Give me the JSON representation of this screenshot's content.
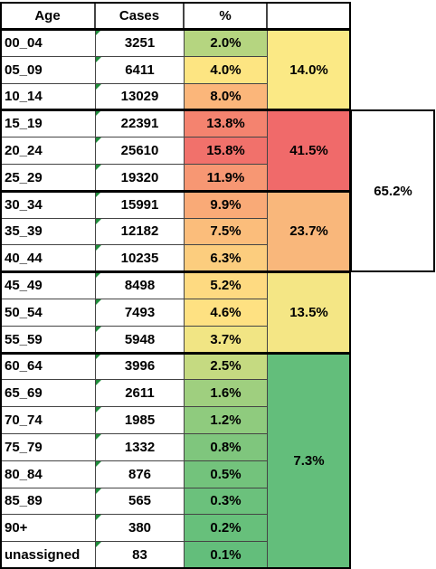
{
  "table": {
    "header": [
      "Age",
      "Cases",
      "%"
    ],
    "sections": [
      {
        "groups": [
          {
            "label": "14.0%",
            "color": "#fbe985",
            "rows": [
              {
                "cells": [
                  "00_04",
                  "3251",
                  "2.0%"
                ],
                "color": "#b5d580"
              },
              {
                "cells": [
                  "05_09",
                  "6411",
                  "4.0%"
                ],
                "color": "#fde582"
              },
              {
                "cells": [
                  "10_14",
                  "13029",
                  "8.0%"
                ],
                "color": "#fbb67a"
              }
            ]
          }
        ]
      },
      {
        "label": "65.2%",
        "groups": [
          {
            "label": "41.5%",
            "color": "#f06a6a",
            "rows": [
              {
                "cells": [
                  "15_19",
                  "22391",
                  "13.8%"
                ],
                "color": "#f4836f"
              },
              {
                "cells": [
                  "20_24",
                  "25610",
                  "15.8%"
                ],
                "color": "#f1716b"
              },
              {
                "cells": [
                  "25_29",
                  "19320",
                  "11.9%"
                ],
                "color": "#f79773"
              }
            ]
          },
          {
            "label": "23.7%",
            "color": "#f9b77b",
            "rows": [
              {
                "cells": [
                  "30_34",
                  "15991",
                  "9.9%"
                ],
                "color": "#f9aa77"
              },
              {
                "cells": [
                  "35_39",
                  "12182",
                  "7.5%"
                ],
                "color": "#fbbd7b"
              },
              {
                "cells": [
                  "40_44",
                  "10235",
                  "6.3%"
                ],
                "color": "#fccd7e"
              }
            ]
          }
        ]
      },
      {
        "groups": [
          {
            "label": "13.5%",
            "color": "#f4e685",
            "rows": [
              {
                "cells": [
                  "45_49",
                  "8498",
                  "5.2%"
                ],
                "color": "#feda81"
              },
              {
                "cells": [
                  "50_54",
                  "7493",
                  "4.6%"
                ],
                "color": "#fee182"
              },
              {
                "cells": [
                  "55_59",
                  "5948",
                  "3.7%"
                ],
                "color": "#f1e584"
              }
            ]
          }
        ]
      },
      {
        "groups": [
          {
            "label": "7.3%",
            "color": "#63be7b",
            "rows": [
              {
                "cells": [
                  "60_64",
                  "3996",
                  "2.5%"
                ],
                "color": "#c5da81"
              },
              {
                "cells": [
                  "65_69",
                  "2611",
                  "1.6%"
                ],
                "color": "#9fcf7f"
              },
              {
                "cells": [
                  "70_74",
                  "1985",
                  "1.2%"
                ],
                "color": "#8fcb7e"
              },
              {
                "cells": [
                  "75_79",
                  "1332",
                  "0.8%"
                ],
                "color": "#7fc67d"
              },
              {
                "cells": [
                  "80_84",
                  "876",
                  "0.5%"
                ],
                "color": "#73c37c"
              },
              {
                "cells": [
                  "85_89",
                  "565",
                  "0.3%"
                ],
                "color": "#6bc17c"
              },
              {
                "cells": [
                  "90+",
                  "380",
                  "0.2%"
                ],
                "color": "#67c07b"
              },
              {
                "cells": [
                  "unassigned",
                  "83",
                  "0.1%"
                ],
                "color": "#63be7b"
              }
            ]
          }
        ]
      }
    ]
  }
}
